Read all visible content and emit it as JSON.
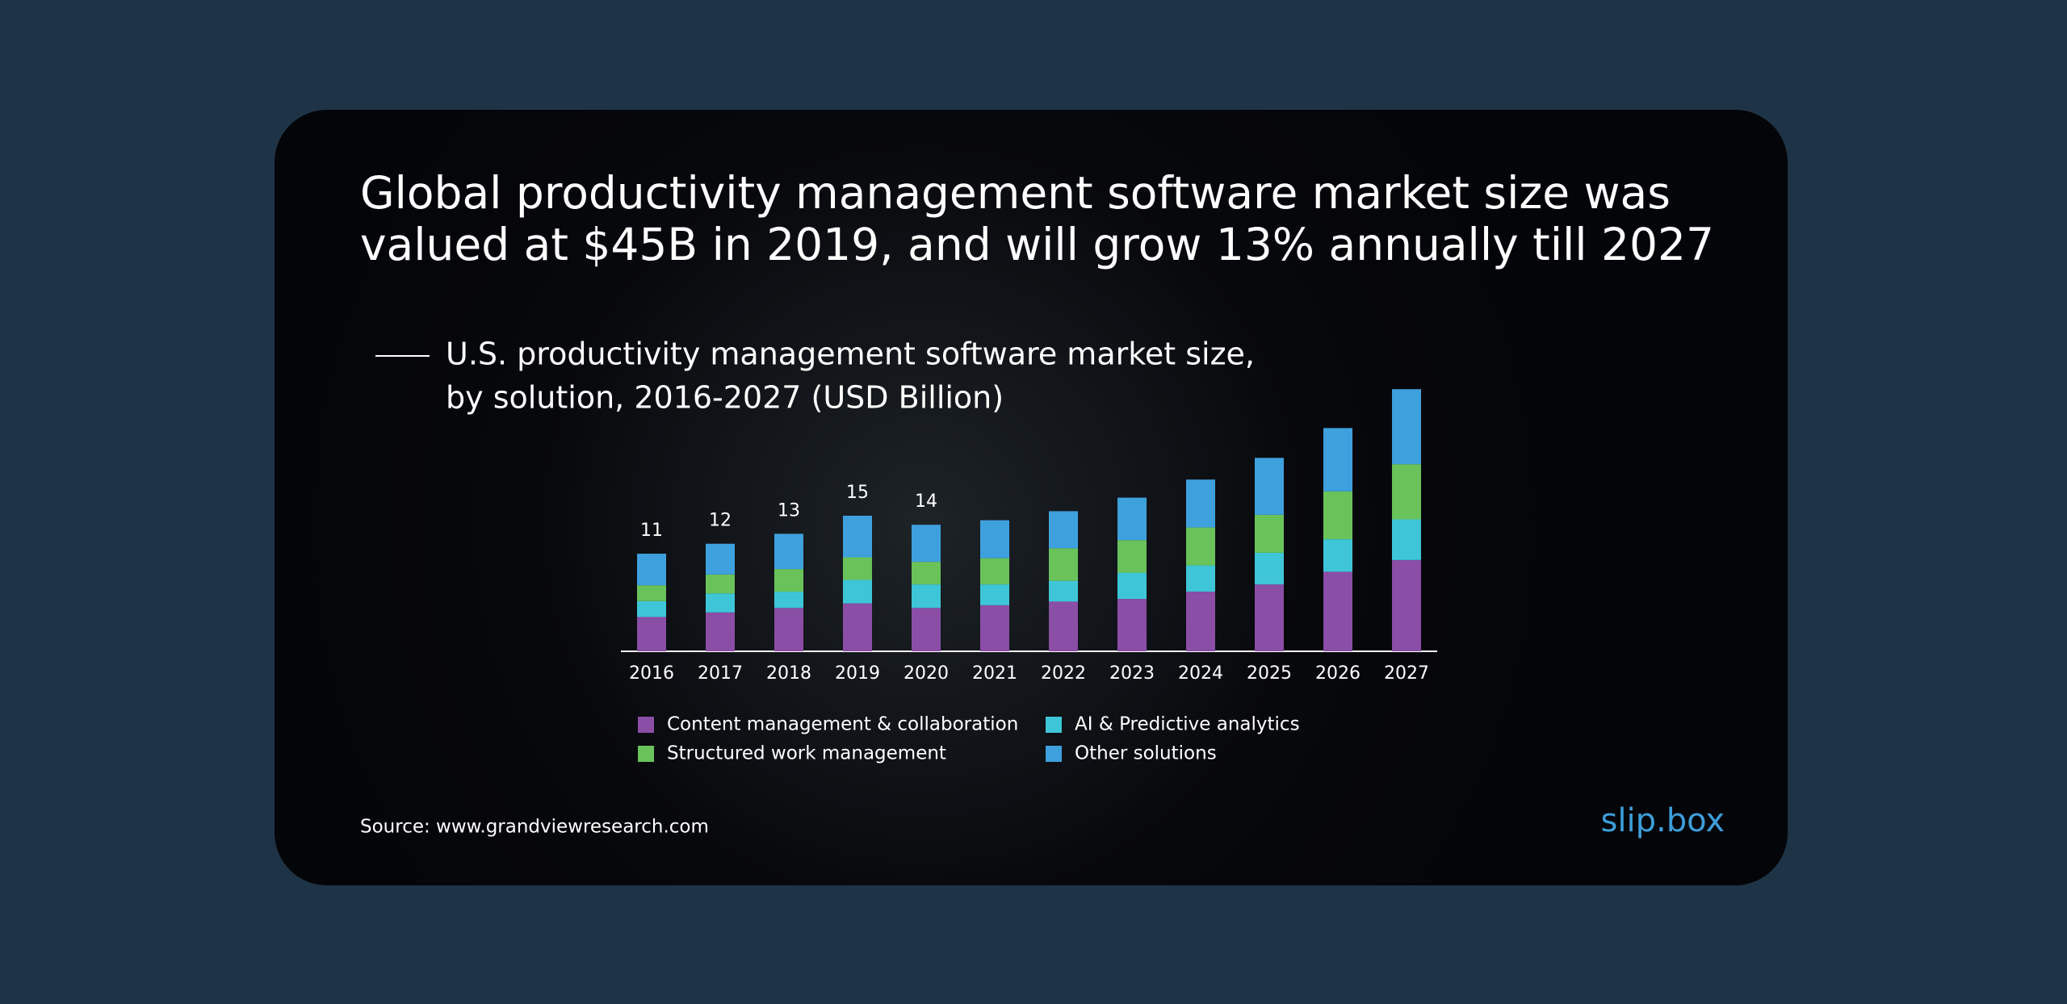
{
  "header": {
    "title": [
      "Global productivity management software market size was",
      "valued at $45B in 2019, and will grow 13% annually till 2027"
    ]
  },
  "chart_data": {
    "type": "stacked-bar",
    "subtitle": [
      "U.S. productivity management software market size,",
      "by solution, 2016-2027 (USD Billion)"
    ],
    "categories": [
      "2016",
      "2017",
      "2018",
      "2019",
      "2020",
      "2021",
      "2022",
      "2023",
      "2024",
      "2025",
      "2026",
      "2027"
    ],
    "series": [
      {
        "name": "Content management & collaboration",
        "color": "#8a4ea6",
        "values": [
          3.8,
          4.3,
          4.8,
          5.3,
          4.8,
          5.1,
          5.5,
          5.8,
          6.6,
          7.4,
          8.8,
          10.1
        ]
      },
      {
        "name": "AI & Predictive analytics",
        "color": "#3ec6d8",
        "values": [
          1.75,
          2.1,
          1.8,
          2.6,
          2.6,
          2.3,
          2.3,
          2.9,
          2.9,
          3.5,
          3.6,
          4.5
        ]
      },
      {
        "name": "Structured work management",
        "color": "#6ac25a",
        "values": [
          1.75,
          2.1,
          2.5,
          2.5,
          2.5,
          2.9,
          3.6,
          3.6,
          4.2,
          4.2,
          5.3,
          6.1
        ]
      },
      {
        "name": "Other solutions",
        "color": "#3fa0de",
        "values": [
          3.5,
          3.4,
          3.9,
          4.6,
          4.1,
          4.2,
          4.1,
          4.7,
          5.3,
          6.3,
          7.0,
          8.3
        ]
      }
    ],
    "totals": [
      11,
      12,
      13,
      15,
      14,
      null,
      null,
      null,
      null,
      null,
      null,
      null
    ],
    "ylim": [
      0,
      30
    ]
  },
  "footer": {
    "source": "Source: www.grandviewresearch.com",
    "brand": "slip.box"
  }
}
